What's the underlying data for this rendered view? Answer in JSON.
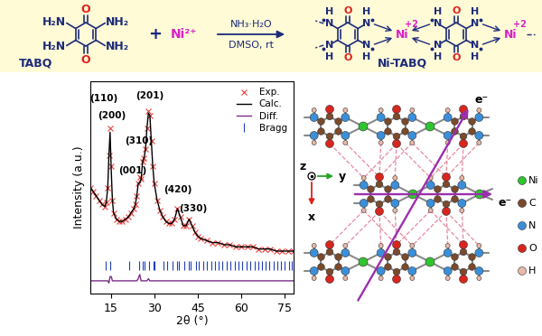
{
  "scheme": {
    "reactant": {
      "name": "TABQ",
      "groups": [
        "H₂N",
        "NH₂",
        "H₂N",
        "NH₂"
      ],
      "oxygen": "O"
    },
    "plus": "+",
    "metal_ion": "Ni²⁺",
    "conditions": [
      "NH₃·H₂O",
      "DMSO, rt"
    ],
    "product": {
      "name": "Ni-TABQ",
      "oxygen": "O",
      "nitrogen": "N",
      "hydrogen": "H",
      "metal": "Ni",
      "metal_charge": "+2"
    }
  },
  "chart_data": {
    "type": "line",
    "x_label": "2θ (°)",
    "y_label": "Intensity (a.u.)",
    "x": [
      8,
      9,
      10,
      11,
      12,
      13,
      13.5,
      14,
      14.4,
      14.8,
      15.2,
      15.6,
      16,
      17,
      18,
      19,
      20,
      21,
      22,
      23,
      23.5,
      24,
      24.5,
      25,
      25.5,
      26,
      26.5,
      27,
      27.5,
      28,
      28.5,
      29,
      29.5,
      30,
      31,
      32,
      33,
      34,
      35,
      36,
      37,
      38,
      39,
      40,
      41,
      42,
      43,
      44,
      45,
      46,
      48,
      50,
      52,
      54,
      56,
      58,
      60,
      62,
      64,
      66,
      68,
      70,
      72,
      74,
      76,
      78
    ],
    "xlim": [
      8,
      78
    ],
    "xticks": [
      15,
      30,
      45,
      60,
      75
    ],
    "ylim": [
      0,
      100
    ],
    "yticks": [],
    "tick_labels": "x",
    "legend": "upper right",
    "series": [
      {
        "name": "Exp.",
        "color": "#e8413c",
        "marker": "x",
        "line_style": "none",
        "values": [
          50,
          48,
          46,
          44,
          42,
          41,
          43,
          50,
          65,
          78,
          60,
          44,
          38,
          35,
          34,
          34,
          35,
          36,
          38,
          40,
          42,
          46,
          52,
          55,
          54,
          62,
          64,
          68,
          78,
          86,
          84,
          72,
          60,
          52,
          44,
          39,
          36,
          34,
          33,
          33,
          35,
          40,
          36,
          32,
          32,
          35,
          32,
          29,
          27,
          26,
          25,
          24,
          24,
          23,
          23,
          22,
          22,
          22,
          22,
          21,
          21,
          21,
          20,
          20,
          20,
          20
        ]
      },
      {
        "name": "Calc.",
        "color": "#000000",
        "line_style": "solid",
        "values": [
          50,
          48,
          46,
          44,
          42,
          41,
          43,
          50,
          65,
          76,
          58,
          44,
          38,
          35,
          34,
          34,
          35,
          36,
          38,
          40,
          42,
          46,
          52,
          52,
          54,
          62,
          64,
          68,
          78,
          85,
          84,
          72,
          60,
          52,
          44,
          39,
          36,
          34,
          33,
          33,
          35,
          40,
          36,
          32,
          32,
          35,
          32,
          29,
          27,
          26,
          25,
          24,
          24,
          23,
          23,
          22,
          22,
          22,
          22,
          21,
          21,
          21,
          20,
          20,
          20,
          20
        ]
      },
      {
        "name": "Diff.",
        "color": "#7b2d8b",
        "line_style": "solid",
        "values": [
          6,
          6,
          6,
          6,
          6,
          6,
          6,
          6,
          5,
          8,
          8,
          6,
          6,
          6,
          6,
          6,
          6,
          6,
          6,
          6,
          6,
          6,
          7,
          9,
          6,
          6,
          6,
          6,
          6,
          7,
          6,
          6,
          6,
          6,
          6,
          6,
          6,
          6,
          6,
          6,
          6,
          6,
          6,
          6,
          6,
          6,
          6,
          6,
          6,
          6,
          6,
          6,
          6,
          6,
          6,
          6,
          6,
          6,
          6,
          6,
          6,
          6,
          6,
          6,
          6,
          6
        ]
      },
      {
        "name": "Bragg",
        "type": "scatter",
        "color": "#1f3fbf",
        "marker": "|",
        "line_style": "none",
        "x": [
          13.3,
          14.8,
          21.5,
          24.8,
          25.9,
          26.6,
          28.2,
          29.8,
          30.0,
          33.1,
          34.5,
          36.2,
          37.9,
          38.6,
          40.4,
          41.9,
          42.6,
          44.5,
          45.3,
          46.8,
          48.2,
          49.6,
          50.9,
          52.3,
          53.4,
          55.0,
          56.3,
          57.8,
          59.0,
          60.4,
          61.7,
          63.1,
          64.5,
          65.8,
          67.0,
          68.3,
          69.7,
          71.0,
          72.4,
          73.6,
          75.0,
          76.3,
          77.5
        ],
        "values": [
          13,
          13,
          13,
          13,
          13,
          13,
          13,
          13,
          13,
          13,
          13,
          13,
          13,
          13,
          13,
          13,
          13,
          13,
          13,
          13,
          13,
          13,
          13,
          13,
          13,
          13,
          13,
          13,
          13,
          13,
          13,
          13,
          13,
          13,
          13,
          13,
          13,
          13,
          13,
          13,
          13,
          13,
          13
        ]
      }
    ],
    "annotations": [
      {
        "text": "(110)",
        "x": 12.6,
        "y": 92
      },
      {
        "text": "(200)",
        "x": 15.3,
        "y": 84
      },
      {
        "text": "(001)",
        "x": 22.6,
        "y": 58
      },
      {
        "text": "(310)",
        "x": 24.8,
        "y": 72
      },
      {
        "text": "(201)",
        "x": 28.6,
        "y": 93
      },
      {
        "text": "(420)",
        "x": 38,
        "y": 49
      },
      {
        "text": "(330)",
        "x": 43.5,
        "y": 40
      }
    ]
  },
  "structure": {
    "axes_labels": {
      "z": "z",
      "y": "y",
      "x": "x"
    },
    "electron_label": "e⁻",
    "legend": [
      {
        "name": "Ni",
        "color": "#2fc52f"
      },
      {
        "name": "C",
        "color": "#7b4a2b"
      },
      {
        "name": "N",
        "color": "#3b8fd9"
      },
      {
        "name": "O",
        "color": "#d7261e"
      },
      {
        "name": "H",
        "color": "#e9b8a8"
      }
    ]
  }
}
